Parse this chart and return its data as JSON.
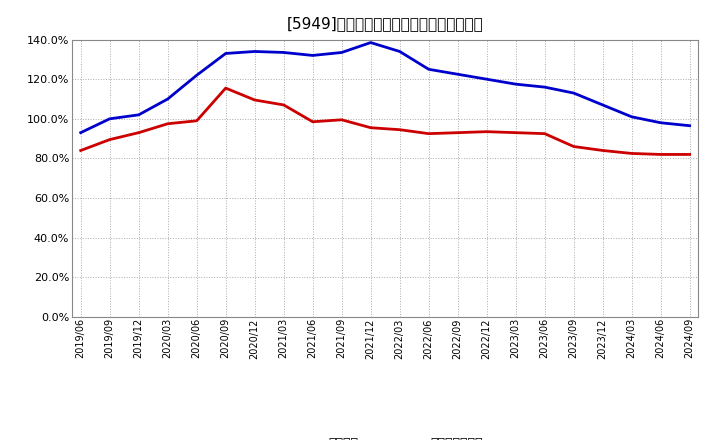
{
  "title": "[5949]　固定比率、固定長期適合率の推移",
  "x_labels": [
    "2019/06",
    "2019/09",
    "2019/12",
    "2020/03",
    "2020/06",
    "2020/09",
    "2020/12",
    "2021/03",
    "2021/06",
    "2021/09",
    "2021/12",
    "2022/03",
    "2022/06",
    "2022/09",
    "2022/12",
    "2023/03",
    "2023/06",
    "2023/09",
    "2023/12",
    "2024/03",
    "2024/06",
    "2024/09"
  ],
  "fixed_ratio": [
    93.0,
    100.0,
    102.0,
    110.0,
    122.0,
    133.0,
    134.0,
    133.5,
    132.0,
    133.5,
    138.5,
    134.0,
    125.0,
    122.5,
    120.0,
    117.5,
    116.0,
    113.0,
    107.0,
    101.0,
    98.0,
    96.5
  ],
  "fixed_long_ratio": [
    84.0,
    89.5,
    93.0,
    97.5,
    99.0,
    115.5,
    109.5,
    107.0,
    98.5,
    99.5,
    95.5,
    94.5,
    92.5,
    93.0,
    93.5,
    93.0,
    92.5,
    86.0,
    84.0,
    82.5,
    82.0,
    82.0
  ],
  "fixed_ratio_color": "#0000cc",
  "fixed_long_ratio_color": "#cc0000",
  "ylim": [
    0,
    140
  ],
  "yticks": [
    0,
    20,
    40,
    60,
    80,
    100,
    120,
    140
  ],
  "background_color": "#ffffff",
  "grid_color": "#aaaaaa",
  "legend_fixed": "固定比率",
  "legend_fixed_long": "固定長期適合率"
}
